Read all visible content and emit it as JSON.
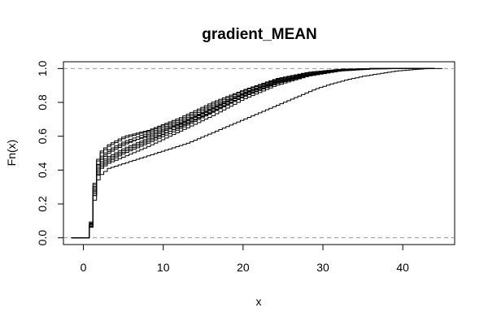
{
  "chart_data": {
    "type": "line",
    "subtype": "empirical-cdf-step",
    "title": "gradient_MEAN",
    "xlabel": "x",
    "ylabel": "Fn(x)",
    "xlim": [
      -2.5,
      46.5
    ],
    "ylim": [
      -0.04,
      1.04
    ],
    "x_ticks": [
      0,
      10,
      20,
      30,
      40
    ],
    "x_tick_labels": [
      "0",
      "10",
      "20",
      "30",
      "40"
    ],
    "y_ticks": [
      0.0,
      0.2,
      0.4,
      0.6,
      0.8,
      1.0
    ],
    "y_tick_labels": [
      "0.0",
      "0.2",
      "0.4",
      "0.6",
      "0.8",
      "1.0"
    ],
    "reference_lines_y": [
      0,
      1
    ],
    "grid": false,
    "legend": "none",
    "colors": {
      "lines": "#000000",
      "reference": "#9a9a9a",
      "background": "#ffffff"
    },
    "series": [
      {
        "points": [
          [
            -1.5,
            0
          ],
          [
            0.5,
            0
          ],
          [
            0.9,
            0.1
          ],
          [
            1.3,
            0.3
          ],
          [
            1.8,
            0.4
          ],
          [
            3,
            0.44
          ],
          [
            5,
            0.48
          ],
          [
            8,
            0.54
          ],
          [
            12,
            0.63
          ],
          [
            16,
            0.72
          ],
          [
            20,
            0.82
          ],
          [
            24,
            0.9
          ],
          [
            28,
            0.955
          ],
          [
            32,
            0.985
          ],
          [
            36,
            0.997
          ],
          [
            40,
            1.0
          ],
          [
            44,
            1.0
          ]
        ]
      },
      {
        "points": [
          [
            -1.5,
            0
          ],
          [
            0.5,
            0
          ],
          [
            0.9,
            0.12
          ],
          [
            1.3,
            0.33
          ],
          [
            1.8,
            0.44
          ],
          [
            3,
            0.48
          ],
          [
            5,
            0.53
          ],
          [
            8,
            0.59
          ],
          [
            12,
            0.67
          ],
          [
            16,
            0.76
          ],
          [
            20,
            0.85
          ],
          [
            24,
            0.92
          ],
          [
            28,
            0.965
          ],
          [
            32,
            0.99
          ],
          [
            36,
            1.0
          ],
          [
            44,
            1.0
          ]
        ]
      },
      {
        "points": [
          [
            -1.5,
            0
          ],
          [
            0.5,
            0
          ],
          [
            0.9,
            0.13
          ],
          [
            1.3,
            0.35
          ],
          [
            1.8,
            0.47
          ],
          [
            3,
            0.52
          ],
          [
            5,
            0.57
          ],
          [
            8,
            0.62
          ],
          [
            12,
            0.69
          ],
          [
            16,
            0.78
          ],
          [
            20,
            0.86
          ],
          [
            24,
            0.93
          ],
          [
            28,
            0.97
          ],
          [
            32,
            0.992
          ],
          [
            36,
            1.0
          ],
          [
            44,
            1.0
          ]
        ]
      },
      {
        "points": [
          [
            -1.5,
            0
          ],
          [
            0.5,
            0
          ],
          [
            0.9,
            0.14
          ],
          [
            1.3,
            0.37
          ],
          [
            1.8,
            0.49
          ],
          [
            3,
            0.54
          ],
          [
            5,
            0.59
          ],
          [
            8,
            0.63
          ],
          [
            12,
            0.7
          ],
          [
            16,
            0.79
          ],
          [
            20,
            0.87
          ],
          [
            24,
            0.935
          ],
          [
            28,
            0.975
          ],
          [
            32,
            0.995
          ],
          [
            36,
            1.0
          ],
          [
            44,
            1.0
          ]
        ]
      },
      {
        "points": [
          [
            -1.5,
            0
          ],
          [
            0.5,
            0
          ],
          [
            0.9,
            0.11
          ],
          [
            1.3,
            0.31
          ],
          [
            1.8,
            0.42
          ],
          [
            3,
            0.46
          ],
          [
            5,
            0.51
          ],
          [
            8,
            0.57
          ],
          [
            12,
            0.66
          ],
          [
            16,
            0.75
          ],
          [
            20,
            0.84
          ],
          [
            24,
            0.915
          ],
          [
            28,
            0.96
          ],
          [
            32,
            0.988
          ],
          [
            36,
            0.999
          ],
          [
            40,
            1.0
          ],
          [
            44,
            1.0
          ]
        ]
      },
      {
        "points": [
          [
            -1.5,
            0
          ],
          [
            0.5,
            0
          ],
          [
            0.9,
            0.12
          ],
          [
            1.3,
            0.34
          ],
          [
            1.8,
            0.45
          ],
          [
            3,
            0.5
          ],
          [
            5,
            0.55
          ],
          [
            8,
            0.61
          ],
          [
            12,
            0.68
          ],
          [
            16,
            0.77
          ],
          [
            20,
            0.855
          ],
          [
            24,
            0.925
          ],
          [
            28,
            0.968
          ],
          [
            32,
            0.991
          ],
          [
            36,
            1.0
          ],
          [
            44,
            1.0
          ]
        ]
      },
      {
        "points": [
          [
            -1.5,
            0
          ],
          [
            0.5,
            0
          ],
          [
            0.9,
            0.15
          ],
          [
            1.3,
            0.38
          ],
          [
            1.8,
            0.5
          ],
          [
            3,
            0.55
          ],
          [
            5,
            0.6
          ],
          [
            8,
            0.635
          ],
          [
            12,
            0.71
          ],
          [
            16,
            0.8
          ],
          [
            20,
            0.875
          ],
          [
            24,
            0.94
          ],
          [
            28,
            0.978
          ],
          [
            32,
            0.996
          ],
          [
            36,
            1.0
          ],
          [
            44,
            1.0
          ]
        ]
      },
      {
        "points": [
          [
            -1.5,
            0
          ],
          [
            0.5,
            0
          ],
          [
            0.9,
            0.1
          ],
          [
            1.3,
            0.3
          ],
          [
            1.8,
            0.41
          ],
          [
            3,
            0.45
          ],
          [
            5,
            0.5
          ],
          [
            8,
            0.56
          ],
          [
            12,
            0.645
          ],
          [
            16,
            0.74
          ],
          [
            20,
            0.835
          ],
          [
            24,
            0.91
          ],
          [
            28,
            0.958
          ],
          [
            32,
            0.987
          ],
          [
            36,
            0.998
          ],
          [
            40,
            1.0
          ],
          [
            44,
            1.0
          ]
        ]
      },
      {
        "points": [
          [
            -1.5,
            0
          ],
          [
            0.5,
            0
          ],
          [
            0.9,
            0.13
          ],
          [
            1.3,
            0.36
          ],
          [
            1.8,
            0.46
          ],
          [
            3,
            0.51
          ],
          [
            5,
            0.56
          ],
          [
            8,
            0.6
          ],
          [
            12,
            0.675
          ],
          [
            16,
            0.765
          ],
          [
            20,
            0.85
          ],
          [
            24,
            0.92
          ],
          [
            28,
            0.966
          ],
          [
            32,
            0.99
          ],
          [
            36,
            1.0
          ],
          [
            44,
            1.0
          ]
        ]
      },
      {
        "points": [
          [
            -1.5,
            0
          ],
          [
            0.5,
            0
          ],
          [
            0.9,
            0.12
          ],
          [
            1.3,
            0.32
          ],
          [
            1.8,
            0.43
          ],
          [
            3,
            0.47
          ],
          [
            5,
            0.52
          ],
          [
            8,
            0.58
          ],
          [
            12,
            0.655
          ],
          [
            16,
            0.745
          ],
          [
            20,
            0.84
          ],
          [
            24,
            0.912
          ],
          [
            28,
            0.962
          ],
          [
            32,
            0.989
          ],
          [
            36,
            0.999
          ],
          [
            44,
            1.0
          ]
        ]
      },
      {
        "points": [
          [
            -1.5,
            0
          ],
          [
            0.5,
            0
          ],
          [
            1.0,
            0.15
          ],
          [
            1.5,
            0.33
          ],
          [
            2,
            0.37
          ],
          [
            3,
            0.41
          ],
          [
            5,
            0.44
          ],
          [
            7,
            0.47
          ],
          [
            9,
            0.5
          ],
          [
            11,
            0.53
          ],
          [
            13,
            0.56
          ],
          [
            15,
            0.6
          ],
          [
            17,
            0.64
          ],
          [
            19,
            0.68
          ],
          [
            21,
            0.72
          ],
          [
            23,
            0.76
          ],
          [
            25,
            0.8
          ],
          [
            27,
            0.84
          ],
          [
            29,
            0.88
          ],
          [
            31,
            0.91
          ],
          [
            33,
            0.935
          ],
          [
            35,
            0.955
          ],
          [
            37,
            0.97
          ],
          [
            39,
            0.985
          ],
          [
            41,
            0.993
          ],
          [
            43,
            1.0
          ],
          [
            45,
            1.0
          ]
        ]
      }
    ]
  }
}
